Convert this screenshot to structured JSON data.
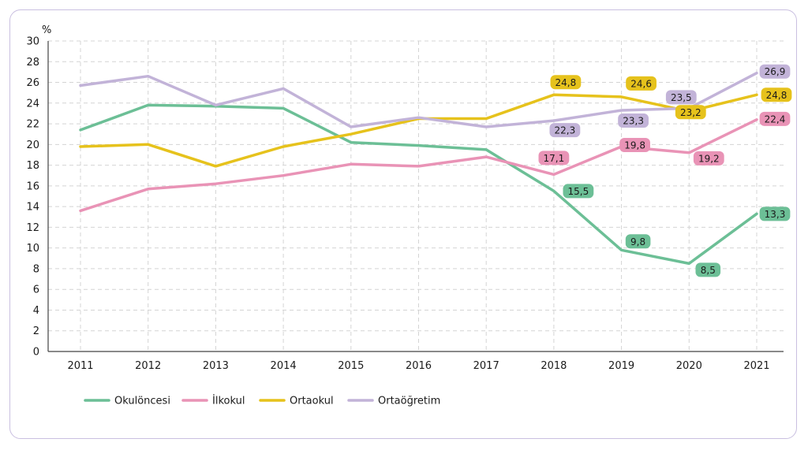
{
  "chart_data": {
    "type": "line",
    "ylabel": "%",
    "ylim": [
      0,
      30
    ],
    "yticks": [
      "0",
      "2",
      "4",
      "6",
      "8",
      "10",
      "12",
      "14",
      "16",
      "18",
      "20",
      "22",
      "24",
      "26",
      "28",
      "30"
    ],
    "categories": [
      "2011",
      "2012",
      "2013",
      "2014",
      "2015",
      "2016",
      "2017",
      "2018",
      "2019",
      "2020",
      "2021"
    ],
    "grid": true,
    "legend_position": "bottom-left",
    "series": [
      {
        "name": "Okulöncesi",
        "color": "#6cbf96",
        "values": [
          21.4,
          23.8,
          23.7,
          23.5,
          20.2,
          19.9,
          19.5,
          15.5,
          9.8,
          8.5,
          13.3
        ],
        "labels": [
          "",
          "",
          "",
          "",
          "",
          "",
          "",
          "15,5",
          "9,8",
          "8,5",
          "13,3"
        ]
      },
      {
        "name": "İlkokul",
        "color": "#e993b6",
        "values": [
          13.6,
          15.7,
          16.2,
          17.0,
          18.1,
          17.9,
          18.8,
          17.1,
          19.8,
          19.2,
          22.4
        ],
        "labels": [
          "",
          "",
          "",
          "",
          "",
          "",
          "",
          "17,1",
          "19,8",
          "19,2",
          "22,4"
        ]
      },
      {
        "name": "Ortaokul",
        "color": "#e6c21c",
        "values": [
          19.8,
          20.0,
          17.9,
          19.8,
          21.0,
          22.5,
          22.5,
          24.8,
          24.6,
          23.2,
          24.8
        ],
        "labels": [
          "",
          "",
          "",
          "",
          "",
          "",
          "",
          "24,8",
          "24,6",
          "23,2",
          "24,8"
        ]
      },
      {
        "name": "Ortaöğretim",
        "color": "#c2b3d8",
        "values": [
          25.7,
          26.6,
          23.8,
          25.4,
          21.7,
          22.6,
          21.7,
          22.3,
          23.3,
          23.5,
          26.9
        ],
        "labels": [
          "",
          "",
          "",
          "",
          "",
          "",
          "",
          "22,3",
          "23,3",
          "23,5",
          "26,9"
        ]
      }
    ]
  }
}
